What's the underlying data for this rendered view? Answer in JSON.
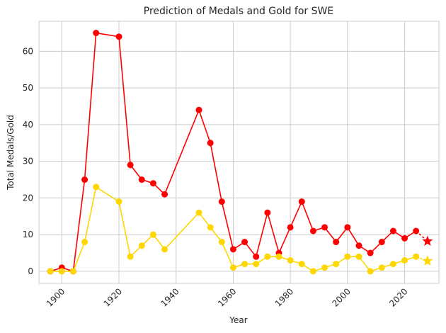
{
  "chart_data": {
    "type": "line",
    "title": "Prediction of Medals and Gold for SWE",
    "xlabel": "Year",
    "ylabel": "Total Medals/Gold",
    "xlim": [
      1892,
      2032
    ],
    "ylim": [
      -3.3,
      68.2
    ],
    "x_ticks": [
      1900,
      1920,
      1940,
      1960,
      1980,
      2000,
      2020
    ],
    "y_ticks": [
      0,
      10,
      20,
      30,
      40,
      50,
      60
    ],
    "grid": true,
    "series": [
      {
        "color": "#ff0000",
        "x": [
          1896,
          1900,
          1904,
          1908,
          1912,
          1920,
          1924,
          1928,
          1932,
          1936,
          1948,
          1952,
          1956,
          1960,
          1964,
          1968,
          1972,
          1976,
          1980,
          1984,
          1988,
          1992,
          1996,
          2000,
          2004,
          2008,
          2012,
          2016,
          2020,
          2024
        ],
        "values": [
          0,
          1,
          0,
          25,
          65,
          64,
          29,
          25,
          24,
          21,
          44,
          35,
          19,
          6,
          8,
          4,
          16,
          5,
          12,
          19,
          11,
          12,
          8,
          12,
          7,
          5,
          8,
          11,
          9,
          11
        ]
      },
      {
        "color": "#ffd700",
        "x": [
          1896,
          1900,
          1904,
          1908,
          1912,
          1920,
          1924,
          1928,
          1932,
          1936,
          1948,
          1952,
          1956,
          1960,
          1964,
          1968,
          1972,
          1976,
          1980,
          1984,
          1988,
          1992,
          1996,
          2000,
          2004,
          2008,
          2012,
          2016,
          2020,
          2024
        ],
        "values": [
          0,
          0,
          0,
          8,
          23,
          19,
          4,
          7,
          10,
          6,
          16,
          12,
          8,
          1,
          2,
          2,
          4,
          4,
          3,
          2,
          0,
          1,
          2,
          4,
          4,
          0,
          1,
          2,
          3,
          4
        ]
      }
    ],
    "predictions": [
      {
        "color": "#ff0000",
        "x": 2028,
        "value": 8.2
      },
      {
        "color": "#ffd700",
        "x": 2028,
        "value": 2.8
      }
    ]
  }
}
